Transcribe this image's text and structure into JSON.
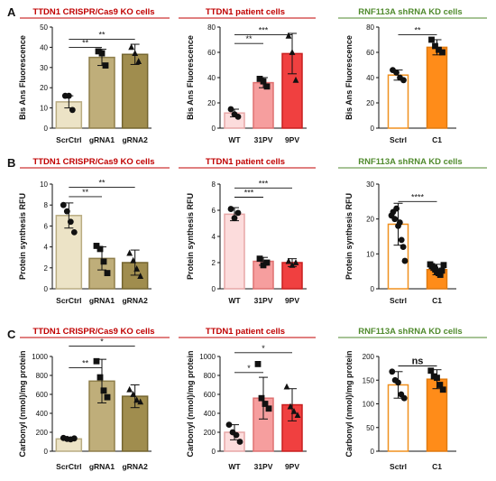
{
  "rows": [
    {
      "label": "A",
      "panels": [
        {
          "title": "TTDN1 CRISPR/Cas9 KO cells",
          "title_color": "#c00000",
          "chart_data": {
            "type": "bar",
            "ylabel": "Bis Ans Fluorescence",
            "ylim": [
              0,
              50
            ],
            "yticks": [
              "0",
              "10",
              "20",
              "30",
              "40",
              "50"
            ],
            "categories": [
              "ScrCtrl",
              "gRNA1",
              "gRNA2"
            ],
            "values": [
              13,
              35,
              36.5
            ],
            "err": [
              3,
              4,
              5
            ],
            "points": [
              [
                16,
                16,
                9
              ],
              [
                38,
                37,
                31
              ],
              [
                40,
                37,
                33
              ]
            ],
            "markers": [
              "circle",
              "square",
              "triangle"
            ],
            "fills": [
              "#ece3c6",
              "#bfae7a",
              "#a08d4e"
            ],
            "edges": [
              "#b9ac82",
              "#8f7f4b",
              "#74652f"
            ],
            "sig": [
              {
                "from": 0,
                "to": 1,
                "y": 40,
                "label": "**"
              },
              {
                "from": 0,
                "to": 2,
                "y": 44,
                "label": "**"
              }
            ]
          }
        },
        {
          "title": "TTDN1 patient cells",
          "title_color": "#c00000",
          "chart_data": {
            "type": "bar",
            "ylabel": "Bis Ans Fluorescence",
            "ylim": [
              0,
              80
            ],
            "yticks": [
              "0",
              "20",
              "40",
              "60",
              "80"
            ],
            "categories": [
              "WT",
              "31PV",
              "9PV"
            ],
            "values": [
              12,
              36,
              59
            ],
            "err": [
              3,
              4,
              16
            ],
            "points": [
              [
                15,
                11,
                9
              ],
              [
                39,
                37,
                33
              ],
              [
                73,
                60,
                38
              ]
            ],
            "markers": [
              "circle",
              "square",
              "triangle"
            ],
            "fills": [
              "#fcdcdc",
              "#f69e9e",
              "#f04040"
            ],
            "edges": [
              "#e7a7a7",
              "#df7070",
              "#c81f1f"
            ],
            "sig": [
              {
                "from": 0,
                "to": 1,
                "y": 67,
                "label": "**"
              },
              {
                "from": 0,
                "to": 2,
                "y": 74,
                "label": "***"
              }
            ]
          }
        },
        {
          "title": "RNF113A shRNA KD  cells",
          "title_color": "#4f8a2c",
          "chart_data": {
            "type": "bar",
            "ylabel": "Bis Ans Fluorescence",
            "ylim": [
              0,
              80
            ],
            "yticks": [
              "0",
              "20",
              "40",
              "60",
              "80"
            ],
            "categories": [
              "Sctrl",
              "C1"
            ],
            "values": [
              42,
              64
            ],
            "err": [
              4,
              6
            ],
            "points": [
              [
                46,
                44,
                40,
                38
              ],
              [
                70,
                65,
                62,
                60
              ]
            ],
            "markers": [
              "circle",
              "square"
            ],
            "fills": [
              "#ffffff",
              "#ff8c19"
            ],
            "edges": [
              "#f0901e",
              "#e07a10"
            ],
            "sig": [
              {
                "from": 0,
                "to": 1,
                "y": 74,
                "label": "**"
              }
            ]
          }
        }
      ]
    },
    {
      "label": "B",
      "panels": [
        {
          "title": "TTDN1 CRISPR/Cas9 KO cells",
          "title_color": "#c00000",
          "chart_data": {
            "type": "bar",
            "ylabel": "Protein synthesis RFU",
            "ylim": [
              0,
              10
            ],
            "yticks": [
              "0",
              "2",
              "4",
              "6",
              "8",
              "10"
            ],
            "categories": [
              "ScrCtrl",
              "gRNA1",
              "gRNA2"
            ],
            "values": [
              7,
              2.9,
              2.5
            ],
            "err": [
              1.2,
              1.1,
              1.2
            ],
            "points": [
              [
                8,
                7.4,
                6.4,
                5.4
              ],
              [
                4.1,
                3.8,
                2.6,
                1.5
              ],
              [
                3.4,
                2.7,
                1.9,
                1.2
              ]
            ],
            "markers": [
              "circle",
              "square",
              "triangle"
            ],
            "fills": [
              "#ece3c6",
              "#bfae7a",
              "#a08d4e"
            ],
            "edges": [
              "#b9ac82",
              "#8f7f4b",
              "#74652f"
            ],
            "sig": [
              {
                "from": 0,
                "to": 1,
                "y": 8.8,
                "label": "**"
              },
              {
                "from": 0,
                "to": 2,
                "y": 9.7,
                "label": "**"
              }
            ]
          }
        },
        {
          "title": "TTDN1 patient cells",
          "title_color": "#c00000",
          "chart_data": {
            "type": "bar",
            "ylabel": "Protein synthesis RFU",
            "ylim": [
              0,
              8
            ],
            "yticks": [
              "0",
              "2",
              "4",
              "6",
              "8"
            ],
            "categories": [
              "WT",
              "31PV",
              "9PV"
            ],
            "values": [
              5.7,
              2.1,
              2
            ],
            "err": [
              0.5,
              0.3,
              0.3
            ],
            "points": [
              [
                6.1,
                5.4,
                5.8
              ],
              [
                2.3,
                1.8,
                2.0
              ],
              [
                2.1,
                1.8,
                2.0
              ]
            ],
            "markers": [
              "circle",
              "square",
              "triangle"
            ],
            "fills": [
              "#fcdcdc",
              "#f69e9e",
              "#f04040"
            ],
            "edges": [
              "#e7a7a7",
              "#df7070",
              "#c81f1f"
            ],
            "sig": [
              {
                "from": 0,
                "to": 1,
                "y": 7.0,
                "label": "***"
              },
              {
                "from": 0,
                "to": 2,
                "y": 7.7,
                "label": "***"
              }
            ]
          }
        },
        {
          "title": "RNF113A shRNA KD  cells",
          "title_color": "#4f8a2c",
          "chart_data": {
            "type": "bar",
            "ylabel": "Protein synthesis RFU",
            "ylim": [
              0,
              30
            ],
            "yticks": [
              "0",
              "10",
              "20",
              "30"
            ],
            "categories": [
              "Sctrl",
              "C1"
            ],
            "values": [
              18.5,
              5.5
            ],
            "err": [
              6,
              1.5
            ],
            "points": [
              [
                21,
                22,
                20,
                23,
                18,
                19,
                14,
                12,
                8
              ],
              [
                7,
                6.5,
                6,
                5.5,
                5,
                4.5,
                4,
                5.2,
                6.8
              ]
            ],
            "markers": [
              "circle",
              "square"
            ],
            "fills": [
              "#ffffff",
              "#ff8c19"
            ],
            "edges": [
              "#f0901e",
              "#e07a10"
            ],
            "sig": [
              {
                "from": 0,
                "to": 1,
                "y": 25,
                "label": "****"
              }
            ]
          }
        }
      ]
    },
    {
      "label": "C",
      "panels": [
        {
          "title": "TTDN1 CRISPR/Cas9 KO cells",
          "title_color": "#c00000",
          "chart_data": {
            "type": "bar",
            "ylabel": "Carbonyl (nmol)/mg protein",
            "ylim": [
              0,
              1000
            ],
            "yticks": [
              "0",
              "200",
              "400",
              "600",
              "800",
              "1000"
            ],
            "categories": [
              "ScrCtrl",
              "gRNA1",
              "gRNA2"
            ],
            "values": [
              130,
              740,
              580
            ],
            "err": [
              15,
              230,
              120
            ],
            "points": [
              [
                140,
                130,
                125,
                135
              ],
              [
                950,
                780,
                640,
                570
              ],
              [
                650,
                600,
                540,
                520
              ]
            ],
            "markers": [
              "circle",
              "square",
              "triangle"
            ],
            "fills": [
              "#ece3c6",
              "#bfae7a",
              "#a08d4e"
            ],
            "edges": [
              "#b9ac82",
              "#8f7f4b",
              "#74652f"
            ],
            "sig": [
              {
                "from": 0,
                "to": 1,
                "y": 880,
                "label": "**"
              },
              {
                "from": 0,
                "to": 2,
                "y": 1110,
                "label": "*"
              }
            ]
          }
        },
        {
          "title": "TTDN1 patient cells",
          "title_color": "#c00000",
          "chart_data": {
            "type": "bar",
            "ylabel": "Carbonyl (nmol)/mg protein",
            "ylim": [
              0,
              1000
            ],
            "yticks": [
              "0",
              "200",
              "400",
              "600",
              "800",
              "1000"
            ],
            "categories": [
              "WT",
              "31PV",
              "9PV"
            ],
            "values": [
              200,
              560,
              490
            ],
            "err": [
              80,
              220,
              170
            ],
            "points": [
              [
                280,
                200,
                170,
                100
              ],
              [
                920,
                560,
                500,
                450
              ],
              [
                680,
                470,
                420,
                380
              ]
            ],
            "markers": [
              "circle",
              "square",
              "triangle"
            ],
            "fills": [
              "#fcdcdc",
              "#f69e9e",
              "#f04040"
            ],
            "edges": [
              "#e7a7a7",
              "#df7070",
              "#c81f1f"
            ],
            "sig": [
              {
                "from": 0,
                "to": 1,
                "y": 830,
                "label": "*"
              },
              {
                "from": 0,
                "to": 2,
                "y": 1040,
                "label": "*"
              }
            ]
          }
        },
        {
          "title": "RNF113A shRNA KD  cells",
          "title_color": "#4f8a2c",
          "chart_data": {
            "type": "bar",
            "ylabel": "Carbonyl (nmol)/mg protein",
            "ylim": [
              0,
              200
            ],
            "yticks": [
              "0",
              "50",
              "100",
              "150",
              "200"
            ],
            "categories": [
              "Sctrl",
              "C1"
            ],
            "values": [
              140,
              152
            ],
            "err": [
              28,
              20
            ],
            "points": [
              [
                168,
                150,
                145,
                120,
                112
              ],
              [
                170,
                158,
                155,
                140,
                130
              ]
            ],
            "markers": [
              "circle",
              "square"
            ],
            "fills": [
              "#ffffff",
              "#ff8c19"
            ],
            "edges": [
              "#f0901e",
              "#e07a10"
            ],
            "sig": [
              {
                "from": 0,
                "to": 1,
                "y": 180,
                "label": "ns"
              }
            ]
          }
        }
      ]
    }
  ]
}
